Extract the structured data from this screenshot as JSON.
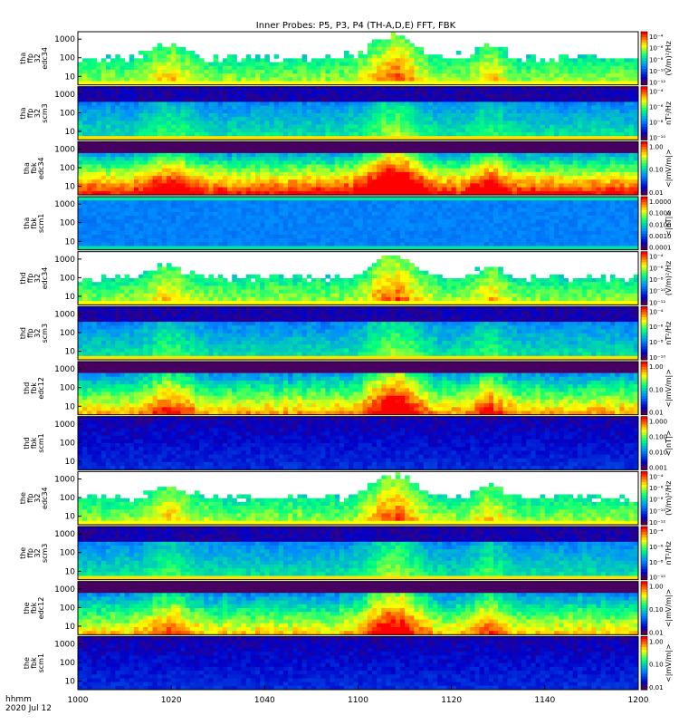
{
  "title": "Inner Probes: P5, P3, P4 (TH-A,D,E) FFT, FBK",
  "footer": {
    "line1": "hhmm",
    "line2": "2020 Jul 12"
  },
  "colors": {
    "min": "#55004a",
    "mid": "#00ff80",
    "max": "#ff0000"
  },
  "chart_data": {
    "type": "heatmap",
    "title": "Inner Probes: P5, P3, P4 (TH-A,D,E) FFT, FBK",
    "x_ticks": [
      "1000",
      "1020",
      "1040",
      "1100",
      "1120",
      "1140",
      "1200"
    ],
    "x_range": [
      "1000",
      "1200"
    ],
    "y_scale": "log",
    "panels": [
      {
        "label": [
          "tha",
          "ffp",
          "32",
          "edc34"
        ],
        "y_ticks": [
          "1000",
          "100",
          "10"
        ],
        "cbar_unit": "(V/m)²/Hz",
        "cbar_ticks": [
          "10⁻⁴",
          "10⁻⁶",
          "10⁻⁸",
          "10⁻¹⁰",
          "10⁻¹²"
        ],
        "pattern": "edc_ffp",
        "level": 0.5
      },
      {
        "label": [
          "tha",
          "ffp",
          "32",
          "scm3"
        ],
        "y_ticks": [
          "1000",
          "100",
          "10"
        ],
        "cbar_unit": "nT²/Hz",
        "cbar_ticks": [
          "10⁻⁴",
          "10⁻⁶",
          "10⁻⁸",
          "10⁻¹⁰"
        ],
        "pattern": "scm_ffp",
        "level": 0.5
      },
      {
        "label": [
          "tha",
          "fbk",
          "edc34"
        ],
        "y_ticks": [
          "1000",
          "100",
          "10"
        ],
        "cbar_unit": "<|mV/m|>",
        "cbar_ticks": [
          "1.00",
          "0.10",
          "0.01"
        ],
        "pattern": "edc_fbk",
        "level": 0.75
      },
      {
        "label": [
          "tha",
          "fbk",
          "scm1"
        ],
        "y_ticks": [
          "1000",
          "100",
          "10"
        ],
        "cbar_unit": "<|nT|>",
        "cbar_ticks": [
          "1.0000",
          "0.1000",
          "0.0100",
          "0.0010",
          "0.0001"
        ],
        "pattern": "scm_fbk_blue",
        "level": 0.3
      },
      {
        "label": [
          "thd",
          "ffp",
          "32",
          "edc34"
        ],
        "y_ticks": [
          "1000",
          "100",
          "10"
        ],
        "cbar_unit": "(V/m)²/Hz",
        "cbar_ticks": [
          "10⁻⁴",
          "10⁻⁶",
          "10⁻⁸",
          "10⁻¹⁰",
          "10⁻¹²"
        ],
        "pattern": "edc_ffp",
        "level": 0.5
      },
      {
        "label": [
          "thd",
          "ffp",
          "32",
          "scm3"
        ],
        "y_ticks": [
          "1000",
          "100",
          "10"
        ],
        "cbar_unit": "nT²/Hz",
        "cbar_ticks": [
          "10⁻⁴",
          "10⁻⁶",
          "10⁻⁸",
          "10⁻¹⁰"
        ],
        "pattern": "scm_ffp",
        "level": 0.5
      },
      {
        "label": [
          "thd",
          "fbk",
          "edc12"
        ],
        "y_ticks": [
          "1000",
          "100",
          "10"
        ],
        "cbar_unit": "<|mV/m|>",
        "cbar_ticks": [
          "1.00",
          "0.10",
          "0.01"
        ],
        "pattern": "edc_fbk",
        "level": 0.6
      },
      {
        "label": [
          "thd",
          "fbk",
          "scm1"
        ],
        "y_ticks": [
          "1000",
          "100",
          "10"
        ],
        "cbar_unit": "<|nT|>",
        "cbar_ticks": [
          "1.000",
          "0.100",
          "0.010",
          "0.001"
        ],
        "pattern": "scm_fbk_purple",
        "level": 0.2
      },
      {
        "label": [
          "the",
          "ffp",
          "32",
          "edc34"
        ],
        "y_ticks": [
          "1000",
          "100",
          "10"
        ],
        "cbar_unit": "(V/m)²/Hz",
        "cbar_ticks": [
          "10⁻⁴",
          "10⁻⁶",
          "10⁻⁸",
          "10⁻¹⁰",
          "10⁻¹²"
        ],
        "pattern": "edc_ffp",
        "level": 0.5
      },
      {
        "label": [
          "the",
          "ffp",
          "32",
          "scm3"
        ],
        "y_ticks": [
          "1000",
          "100",
          "10"
        ],
        "cbar_unit": "nT²/Hz",
        "cbar_ticks": [
          "10⁻⁴",
          "10⁻⁶",
          "10⁻⁸",
          "10⁻¹⁰"
        ],
        "pattern": "scm_ffp",
        "level": 0.5
      },
      {
        "label": [
          "the",
          "fbk",
          "edc12"
        ],
        "y_ticks": [
          "1000",
          "100",
          "10"
        ],
        "cbar_unit": "<|mV/m|>",
        "cbar_ticks": [
          "1.00",
          "0.10",
          "0.01"
        ],
        "pattern": "edc_fbk",
        "level": 0.55
      },
      {
        "label": [
          "the",
          "fbk",
          "scm1"
        ],
        "y_ticks": [
          "1000",
          "100",
          "10"
        ],
        "cbar_unit": "<|mV/m|>",
        "cbar_ticks": [
          "1.00",
          "0.10",
          "0.01"
        ],
        "pattern": "scm_fbk_purple",
        "level": 0.2
      }
    ]
  }
}
